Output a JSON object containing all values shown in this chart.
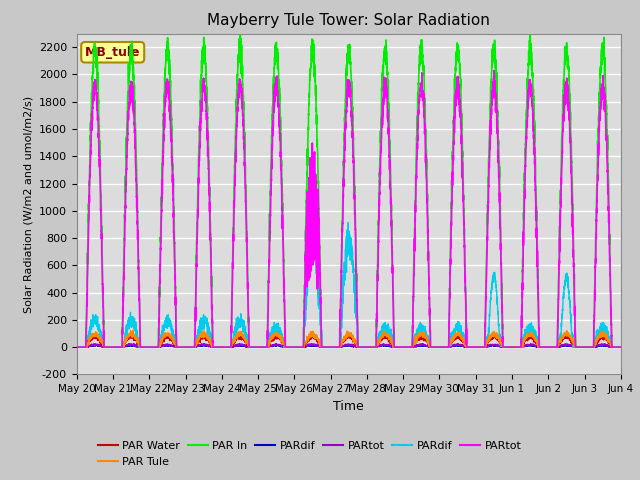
{
  "title": "Mayberry Tule Tower: Solar Radiation",
  "ylabel": "Solar Radiation (W/m2 and umol/m2/s)",
  "xlabel": "Time",
  "ylim": [
    -200,
    2300
  ],
  "yticks": [
    -200,
    0,
    200,
    400,
    600,
    800,
    1000,
    1200,
    1400,
    1600,
    1800,
    2000,
    2200
  ],
  "n_days": 15,
  "day_labels": [
    "May 20",
    "May 21",
    "May 22",
    "May 23",
    "May 24",
    "May 25",
    "May 26",
    "May 27",
    "May 28",
    "May 29",
    "May 30",
    "May 31",
    "Jun 1",
    "Jun 2",
    "Jun 3",
    "Jun 4"
  ],
  "annotation_label": "MB_tule",
  "annotation_text_color": "#8b0000",
  "annotation_bg": "#ffff99",
  "annotation_border": "#aa8800",
  "colors": {
    "par_water": "#cc0000",
    "par_tule": "#ff8800",
    "par_in": "#00ee00",
    "par_dif_blue": "#0000cc",
    "par_tot_purple": "#9900cc",
    "par_dif_cyan": "#00ccee",
    "par_tot_mag": "#ff00ff"
  },
  "fig_bg": "#c8c8c8",
  "axes_bg": "#dcdcdc",
  "grid_color": "#ffffff"
}
